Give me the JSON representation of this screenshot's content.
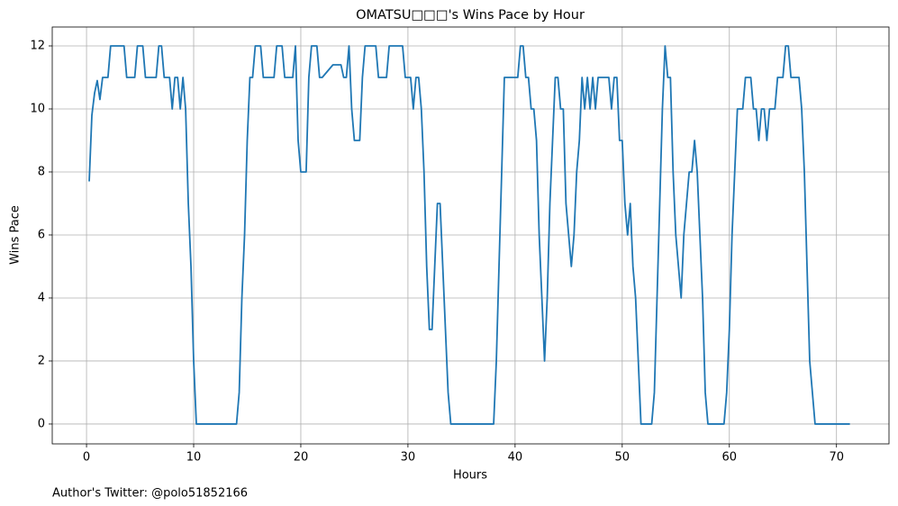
{
  "chart_data": {
    "type": "line",
    "title": "OMATSU□□□'s Wins Pace by Hour",
    "x_label": "Hours",
    "y_label": "Wins Pace",
    "footnote": "Author's Twitter: @polo51852166",
    "color": "#1f77b4",
    "grid": true,
    "xlim": [
      -3.2,
      74.9
    ],
    "ylim": [
      -0.63,
      12.6
    ],
    "xticks": [
      0,
      10,
      20,
      30,
      40,
      50,
      60,
      70
    ],
    "yticks": [
      0,
      2,
      4,
      6,
      8,
      10,
      12
    ],
    "x": [
      0.25,
      0.5,
      0.75,
      1.0,
      1.25,
      1.5,
      2.0,
      2.25,
      3.5,
      3.75,
      4.5,
      4.75,
      5.25,
      5.5,
      6.5,
      6.75,
      7.0,
      7.25,
      7.75,
      8.0,
      8.25,
      8.5,
      8.75,
      9.0,
      9.25,
      9.5,
      9.75,
      10.0,
      10.25,
      14.0,
      14.25,
      14.5,
      14.75,
      15.0,
      15.25,
      15.5,
      15.75,
      16.25,
      16.5,
      17.5,
      17.75,
      18.25,
      18.5,
      19.25,
      19.5,
      19.75,
      20.0,
      20.5,
      20.75,
      21.0,
      21.5,
      21.75,
      22.0,
      23.0,
      23.75,
      24.0,
      24.25,
      24.5,
      24.75,
      25.0,
      25.5,
      25.75,
      26.0,
      27.0,
      27.25,
      28.0,
      28.25,
      29.5,
      29.75,
      30.25,
      30.5,
      30.75,
      31.0,
      31.25,
      31.5,
      31.75,
      32.0,
      32.25,
      32.5,
      32.75,
      33.0,
      33.25,
      33.5,
      33.75,
      34.0,
      38.0,
      38.25,
      38.5,
      38.75,
      39.0,
      40.25,
      40.5,
      40.75,
      41.0,
      41.25,
      41.5,
      41.75,
      42.0,
      42.25,
      42.5,
      42.75,
      43.0,
      43.25,
      43.5,
      43.75,
      44.0,
      44.25,
      44.5,
      44.75,
      45.0,
      45.25,
      45.5,
      45.75,
      46.0,
      46.25,
      46.5,
      46.75,
      47.0,
      47.25,
      47.5,
      47.75,
      48.75,
      49.0,
      49.25,
      49.5,
      49.75,
      50.0,
      50.25,
      50.5,
      50.75,
      51.0,
      51.25,
      51.5,
      51.75,
      52.75,
      53.0,
      53.25,
      53.5,
      53.75,
      54.0,
      54.25,
      54.5,
      54.75,
      55.0,
      55.25,
      55.5,
      55.75,
      56.0,
      56.25,
      56.5,
      56.75,
      57.0,
      57.25,
      57.5,
      57.75,
      58.0,
      59.5,
      59.75,
      60.0,
      60.25,
      60.5,
      60.75,
      61.25,
      61.5,
      62.0,
      62.25,
      62.5,
      62.75,
      63.0,
      63.25,
      63.5,
      63.75,
      64.25,
      64.5,
      65.0,
      65.25,
      65.5,
      65.75,
      66.5,
      66.75,
      67.0,
      67.25,
      67.5,
      67.75,
      68.0,
      71.25
    ],
    "values": [
      7.7,
      9.8,
      10.5,
      10.9,
      10.3,
      11,
      11,
      12,
      12,
      11,
      11,
      12,
      12,
      11,
      11,
      12,
      12,
      11,
      11,
      10,
      11,
      11,
      10,
      11,
      10,
      7,
      5,
      2,
      0,
      0,
      1,
      4,
      6,
      9,
      11,
      11,
      12,
      12,
      11,
      11,
      12,
      12,
      11,
      11,
      12,
      9,
      8,
      8,
      11,
      12,
      12,
      11,
      11,
      11.4,
      11.4,
      11,
      11,
      12,
      10,
      9,
      9,
      11,
      12,
      12,
      11,
      11,
      12,
      12,
      11,
      11,
      10,
      11,
      11,
      10,
      8,
      5,
      3,
      3,
      5,
      7,
      7,
      5,
      3,
      1,
      0,
      0,
      2,
      5,
      8,
      11,
      11,
      12,
      12,
      11,
      11,
      10,
      10,
      9,
      6,
      4,
      2,
      4,
      7,
      9,
      11,
      11,
      10,
      10,
      7,
      6,
      5,
      6,
      8,
      9,
      11,
      10,
      11,
      10,
      11,
      10,
      11,
      11,
      10,
      11,
      11,
      9,
      9,
      7,
      6,
      7,
      5,
      4,
      2,
      0,
      0,
      1,
      4,
      7,
      10,
      12,
      11,
      11,
      8,
      6,
      5,
      4,
      6,
      7,
      8,
      8,
      9,
      8,
      6,
      4,
      1,
      0,
      0,
      1,
      3,
      6,
      8,
      10,
      10,
      11,
      11,
      10,
      10,
      9,
      10,
      10,
      9,
      10,
      10,
      11,
      11,
      12,
      12,
      11,
      11,
      10,
      8,
      5,
      2,
      1,
      0,
      0
    ]
  }
}
